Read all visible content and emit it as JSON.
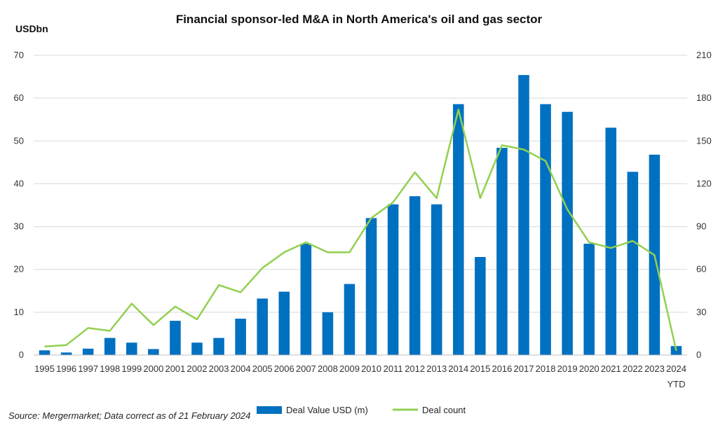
{
  "chart_data": {
    "type": "bar+line",
    "title": "Financial sponsor-led M&A in North America's oil and gas sector",
    "ylabel_left": "USDbn",
    "categories": [
      "1995",
      "1996",
      "1997",
      "1998",
      "1999",
      "2000",
      "2001",
      "2002",
      "2003",
      "2004",
      "2005",
      "2006",
      "2007",
      "2008",
      "2009",
      "2010",
      "2011",
      "2012",
      "2013",
      "2014",
      "2015",
      "2016",
      "2017",
      "2018",
      "2019",
      "2020",
      "2021",
      "2022",
      "2023",
      "2024"
    ],
    "last_category_sublabel": "YTD",
    "series": [
      {
        "name": "Deal Value USD (m)",
        "type": "bar",
        "axis": "left",
        "color": "#0070C0",
        "values": [
          1.1,
          0.6,
          1.5,
          4.0,
          2.9,
          1.4,
          8.0,
          2.9,
          4.0,
          8.5,
          13.2,
          14.8,
          26.0,
          10.0,
          16.6,
          32.0,
          35.2,
          37.1,
          35.2,
          58.6,
          22.9,
          48.4,
          65.4,
          58.6,
          56.8,
          26.0,
          53.1,
          42.8,
          46.8,
          2.1
        ]
      },
      {
        "name": "Deal count",
        "type": "line",
        "axis": "right",
        "color": "#92D050",
        "values": [
          6,
          7,
          19,
          17,
          36,
          21,
          34,
          25,
          49,
          44,
          61,
          72,
          79,
          72,
          72,
          96,
          107,
          128,
          110,
          172,
          110,
          147,
          144,
          136,
          102,
          79,
          75,
          80,
          70,
          3
        ]
      }
    ],
    "y_left": {
      "min": 0,
      "max": 70,
      "ticks": [
        0,
        10,
        20,
        30,
        40,
        50,
        60,
        70
      ]
    },
    "y_right": {
      "min": 0,
      "max": 210,
      "ticks": [
        0,
        30,
        60,
        90,
        120,
        150,
        180,
        210
      ]
    },
    "grid": true,
    "legend_position": "bottom"
  },
  "source_note": "Source: Mergermarket; Data correct as of 21 February 2024"
}
